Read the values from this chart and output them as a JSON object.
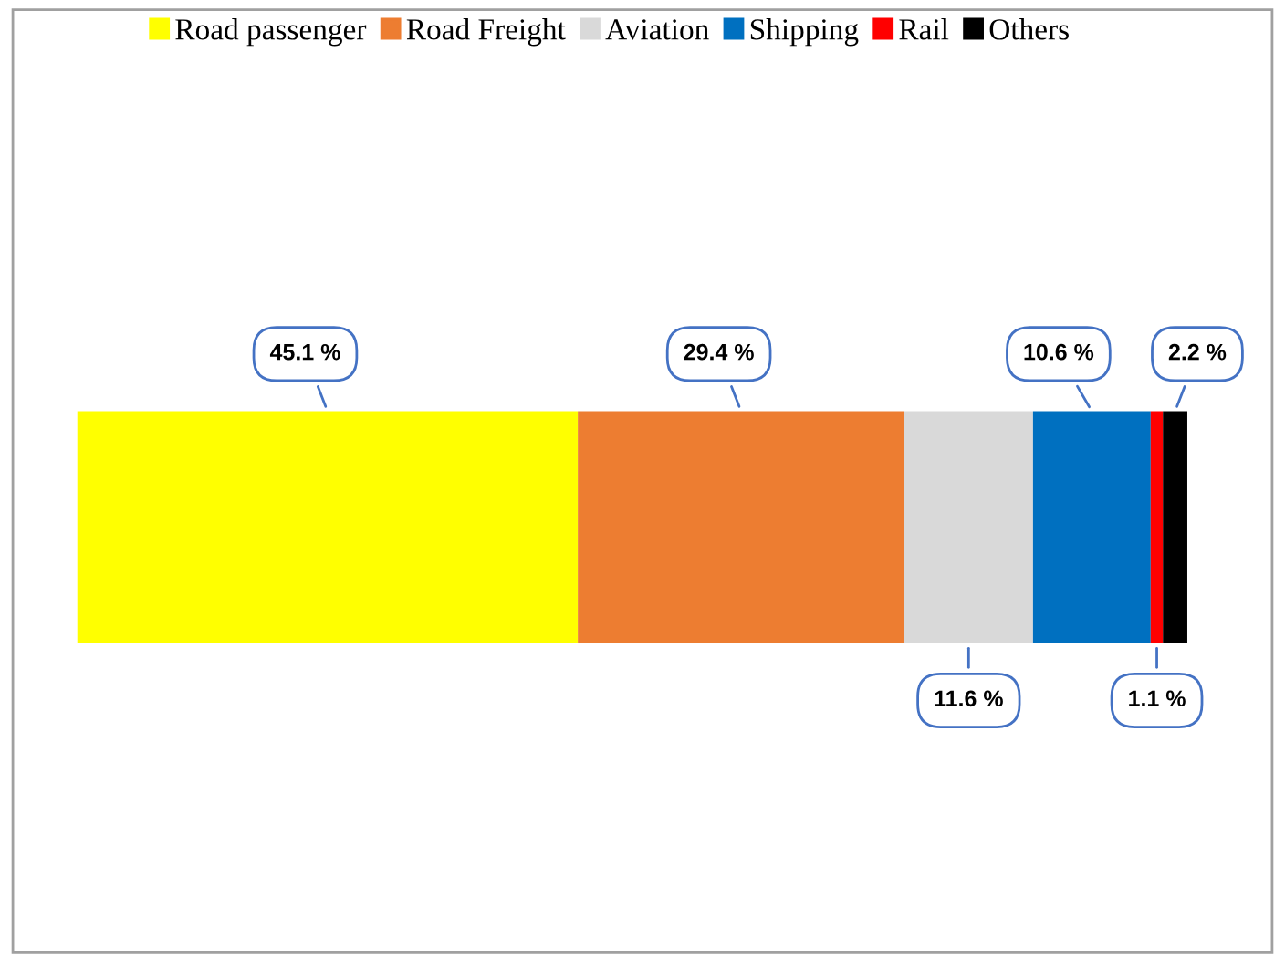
{
  "chart_data": {
    "type": "bar",
    "orientation": "horizontal",
    "stacked": true,
    "categories": [
      null
    ],
    "legend": "top",
    "series": [
      {
        "name": "Road passenger",
        "color": "#ffff00",
        "values": [
          45.1
        ],
        "value_labels": [
          "45.1 %"
        ]
      },
      {
        "name": "Road Freight",
        "color": "#ed7d31",
        "values": [
          29.4
        ],
        "value_labels": [
          "29.4 %"
        ]
      },
      {
        "name": "Aviation",
        "color": "#d9d9d9",
        "values": [
          11.6
        ],
        "value_labels": [
          "11.6 %"
        ]
      },
      {
        "name": "Shipping",
        "color": "#0070c0",
        "values": [
          10.6
        ],
        "value_labels": [
          "10.6 %"
        ]
      },
      {
        "name": "Rail",
        "color": "#ff0000",
        "values": [
          1.1
        ],
        "value_labels": [
          "1.1 %"
        ]
      },
      {
        "name": "Others",
        "color": "#000000",
        "values": [
          2.2
        ],
        "value_labels": [
          "2.2 %"
        ]
      }
    ]
  }
}
